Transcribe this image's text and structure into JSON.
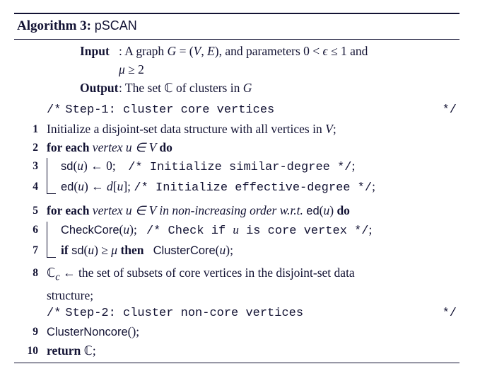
{
  "title": {
    "label": "Algorithm 3:",
    "name": "pSCAN"
  },
  "io": {
    "input_kw": "Input",
    "input_text": ": A graph G = (V, E), and parameters 0 < ϵ ≤ 1 and μ ≥ 2",
    "input_cont": "μ ≥ 2",
    "output_kw": "Output",
    "output_text": ": The set ℂ of clusters in G"
  },
  "step1_comment": {
    "open": "/*",
    "text": "Step-1: cluster core vertices",
    "close": "*/"
  },
  "step2_comment": {
    "open": "/*",
    "text": "Step-2: cluster non-core vertices",
    "close": "*/"
  },
  "lines": {
    "l1": "Initialize a disjoint-set data structure with all vertices in V;",
    "l2": {
      "kw": "for each",
      "cond": "vertex u ∈ V",
      "do": "do"
    },
    "l3": {
      "stmt": "sd(u) ← 0;",
      "c": "Initialize similar-degree"
    },
    "l4": {
      "stmt": "ed(u) ← d[u];",
      "c": "Initialize effective-degree"
    },
    "l5": {
      "kw": "for each",
      "cond": "vertex u ∈ V in non-increasing order w.r.t.",
      "tail": "ed(u)",
      "do": "do"
    },
    "l6": {
      "stmt": "CheckCore(u);",
      "c_pre": "Check if",
      "c_var": "u",
      "c_post": "is core vertex"
    },
    "l7": {
      "kw": "if",
      "cond": "sd(u) ≥ μ",
      "then": "then",
      "call": "ClusterCore(u);"
    },
    "l8": "ℂc ← the set of subsets of core vertices in the disjoint-set data structure;",
    "l8_cont": "structure;",
    "l9": "ClusterNoncore();",
    "l10": {
      "kw": "return",
      "val": "ℂ;"
    }
  },
  "nums": {
    "n1": "1",
    "n2": "2",
    "n3": "3",
    "n4": "4",
    "n5": "5",
    "n6": "6",
    "n7": "7",
    "n8": "8",
    "n9": "9",
    "n10": "10"
  },
  "colors": {
    "text": "#121233",
    "bg": "#ffffff"
  }
}
